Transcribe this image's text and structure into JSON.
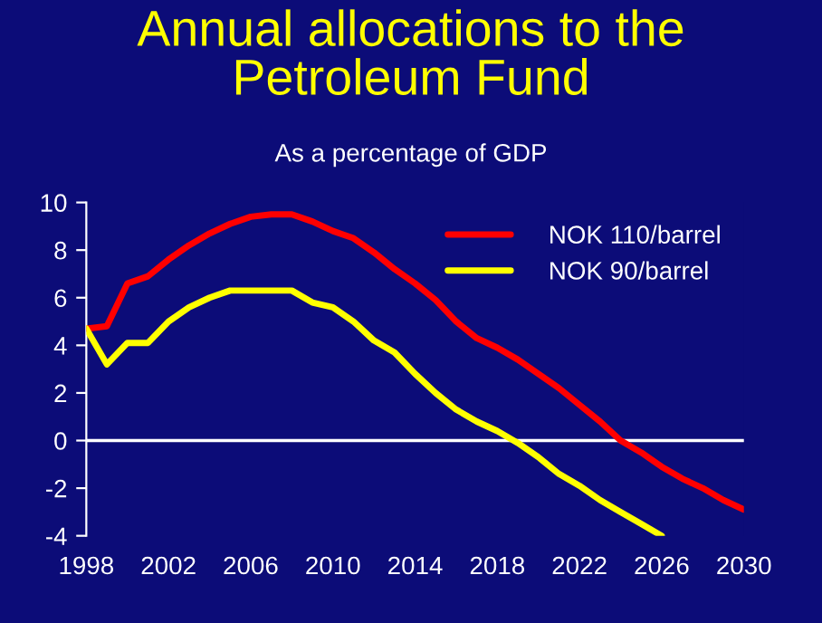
{
  "chart_data": {
    "type": "line",
    "title": "Annual allocations to the\nPetroleum Fund",
    "subtitle": "As a percentage of GDP",
    "x": [
      1998,
      1999,
      2000,
      2001,
      2002,
      2003,
      2004,
      2005,
      2006,
      2007,
      2008,
      2009,
      2010,
      2011,
      2012,
      2013,
      2014,
      2015,
      2016,
      2017,
      2018,
      2019,
      2020,
      2021,
      2022,
      2023,
      2024,
      2025,
      2026,
      2027,
      2028,
      2029,
      2030
    ],
    "series": [
      {
        "name": "NOK 110/barrel",
        "color": "#ff0000",
        "values": [
          4.7,
          4.8,
          6.6,
          6.9,
          7.6,
          8.2,
          8.7,
          9.1,
          9.4,
          9.5,
          9.5,
          9.2,
          8.8,
          8.5,
          7.9,
          7.2,
          6.6,
          5.9,
          5.0,
          4.3,
          3.9,
          3.4,
          2.8,
          2.2,
          1.5,
          0.8,
          0.0,
          -0.5,
          -1.1,
          -1.6,
          -2.0,
          -2.5,
          -2.9
        ]
      },
      {
        "name": "NOK 90/barrel",
        "color": "#ffff00",
        "values": [
          4.7,
          3.2,
          4.1,
          4.1,
          5.0,
          5.6,
          6.0,
          6.3,
          6.3,
          6.3,
          6.3,
          5.8,
          5.6,
          5.0,
          4.2,
          3.7,
          2.8,
          2.0,
          1.3,
          0.8,
          0.4,
          -0.1,
          -0.7,
          -1.4,
          -1.9,
          -2.5,
          -3.0,
          -3.5,
          -4.0,
          null,
          null,
          null,
          null
        ]
      }
    ],
    "xlim": [
      1998,
      2030
    ],
    "xticks": [
      1998,
      2002,
      2006,
      2010,
      2014,
      2018,
      2022,
      2026,
      2030
    ],
    "ylim": [
      -4,
      10
    ],
    "yticks": [
      -4,
      -2,
      0,
      2,
      4,
      6,
      8,
      10
    ],
    "ref_lines": [
      {
        "axis": "y",
        "value": 0,
        "color": "#ffffff"
      }
    ],
    "legend": "top right",
    "grid": false,
    "marker": "none",
    "line_style": "solid"
  }
}
